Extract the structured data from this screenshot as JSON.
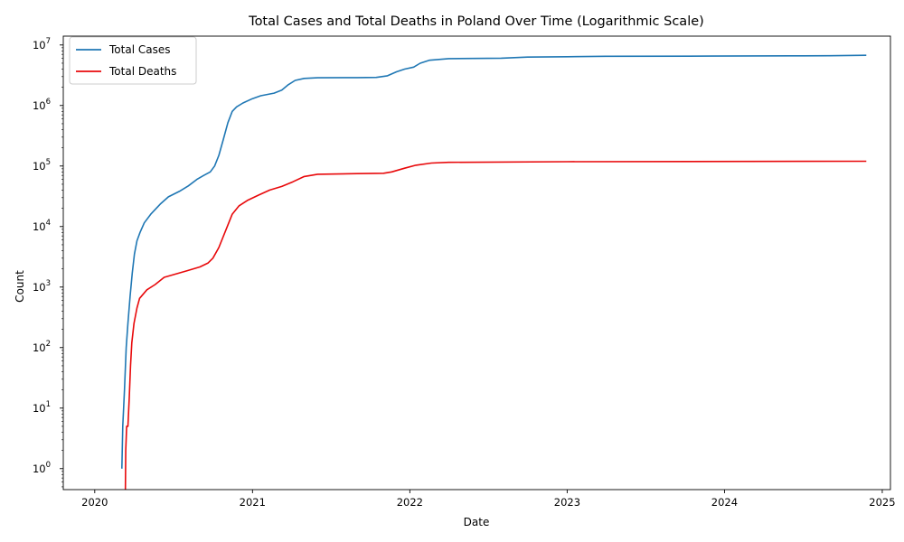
{
  "chart_data": {
    "type": "line",
    "title": "Total Cases and Total Deaths in Poland Over Time (Logarithmic Scale)",
    "xlabel": "Date",
    "ylabel": "Count",
    "yscale": "log",
    "xlim": [
      "2019-10-20",
      "2025-01-20"
    ],
    "ylim": [
      0.45,
      14000000
    ],
    "x_ticks": [
      "2020-01-01",
      "2021-01-01",
      "2022-01-01",
      "2023-01-01",
      "2024-01-01",
      "2025-01-01"
    ],
    "x_tick_labels": [
      "2020",
      "2021",
      "2022",
      "2023",
      "2024",
      "2025"
    ],
    "y_ticks": [
      1,
      10,
      100,
      1000,
      10000,
      100000,
      1000000,
      10000000
    ],
    "y_tick_labels": [
      [
        "10",
        "0"
      ],
      [
        "10",
        "1"
      ],
      [
        "10",
        "2"
      ],
      [
        "10",
        "3"
      ],
      [
        "10",
        "4"
      ],
      [
        "10",
        "5"
      ],
      [
        "10",
        "6"
      ],
      [
        "10",
        "7"
      ]
    ],
    "legend": "top-left",
    "grid": false,
    "series": [
      {
        "name": "Total Cases",
        "color": "#1f77b4",
        "points": [
          [
            "2020-03-04",
            1
          ],
          [
            "2020-03-06",
            5
          ],
          [
            "2020-03-10",
            20
          ],
          [
            "2020-03-14",
            100
          ],
          [
            "2020-03-18",
            250
          ],
          [
            "2020-03-23",
            700
          ],
          [
            "2020-03-28",
            1700
          ],
          [
            "2020-04-02",
            3500
          ],
          [
            "2020-04-08",
            5800
          ],
          [
            "2020-04-15",
            8000
          ],
          [
            "2020-04-25",
            11500
          ],
          [
            "2020-05-10",
            16000
          ],
          [
            "2020-06-01",
            23500
          ],
          [
            "2020-06-20",
            31000
          ],
          [
            "2020-07-15",
            38000
          ],
          [
            "2020-08-05",
            47000
          ],
          [
            "2020-08-25",
            60000
          ],
          [
            "2020-09-10",
            70000
          ],
          [
            "2020-09-25",
            80000
          ],
          [
            "2020-10-05",
            100000
          ],
          [
            "2020-10-15",
            150000
          ],
          [
            "2020-10-25",
            270000
          ],
          [
            "2020-11-05",
            520000
          ],
          [
            "2020-11-15",
            800000
          ],
          [
            "2020-11-25",
            950000
          ],
          [
            "2020-12-10",
            1100000
          ],
          [
            "2021-01-01",
            1300000
          ],
          [
            "2021-01-20",
            1450000
          ],
          [
            "2021-02-20",
            1600000
          ],
          [
            "2021-03-10",
            1800000
          ],
          [
            "2021-03-25",
            2200000
          ],
          [
            "2021-04-10",
            2600000
          ],
          [
            "2021-05-01",
            2800000
          ],
          [
            "2021-06-01",
            2870000
          ],
          [
            "2021-09-01",
            2890000
          ],
          [
            "2021-10-15",
            2910000
          ],
          [
            "2021-11-10",
            3100000
          ],
          [
            "2021-12-01",
            3600000
          ],
          [
            "2021-12-20",
            4000000
          ],
          [
            "2022-01-10",
            4300000
          ],
          [
            "2022-01-25",
            5000000
          ],
          [
            "2022-02-15",
            5600000
          ],
          [
            "2022-04-01",
            5950000
          ],
          [
            "2022-08-01",
            6050000
          ],
          [
            "2022-10-01",
            6300000
          ],
          [
            "2023-01-01",
            6400000
          ],
          [
            "2023-04-01",
            6500000
          ],
          [
            "2023-12-01",
            6550000
          ],
          [
            "2024-06-01",
            6620000
          ],
          [
            "2024-09-01",
            6650000
          ],
          [
            "2024-11-25",
            6750000
          ]
        ]
      },
      {
        "name": "Total Deaths",
        "color": "#e8090b",
        "points": [
          [
            "2020-03-12",
            0.45
          ],
          [
            "2020-03-13",
            2
          ],
          [
            "2020-03-15",
            5
          ],
          [
            "2020-03-18",
            5
          ],
          [
            "2020-03-21",
            15
          ],
          [
            "2020-03-24",
            50
          ],
          [
            "2020-03-27",
            120
          ],
          [
            "2020-04-01",
            250
          ],
          [
            "2020-04-08",
            450
          ],
          [
            "2020-04-14",
            650
          ],
          [
            "2020-05-01",
            900
          ],
          [
            "2020-05-20",
            1100
          ],
          [
            "2020-06-10",
            1450
          ],
          [
            "2020-07-01",
            1600
          ],
          [
            "2020-08-01",
            1850
          ],
          [
            "2020-09-01",
            2150
          ],
          [
            "2020-09-20",
            2500
          ],
          [
            "2020-10-01",
            3000
          ],
          [
            "2020-10-15",
            4500
          ],
          [
            "2020-11-01",
            9000
          ],
          [
            "2020-11-15",
            16000
          ],
          [
            "2020-12-01",
            22000
          ],
          [
            "2020-12-20",
            27000
          ],
          [
            "2021-01-15",
            33000
          ],
          [
            "2021-02-10",
            40000
          ],
          [
            "2021-03-10",
            46000
          ],
          [
            "2021-04-05",
            55000
          ],
          [
            "2021-05-01",
            67000
          ],
          [
            "2021-06-01",
            73000
          ],
          [
            "2021-09-01",
            75000
          ],
          [
            "2021-11-01",
            76000
          ],
          [
            "2021-11-20",
            80000
          ],
          [
            "2021-12-20",
            92000
          ],
          [
            "2022-01-15",
            103000
          ],
          [
            "2022-02-20",
            112000
          ],
          [
            "2022-04-01",
            115000
          ],
          [
            "2023-01-01",
            118000
          ],
          [
            "2024-11-25",
            120000
          ]
        ]
      }
    ]
  }
}
